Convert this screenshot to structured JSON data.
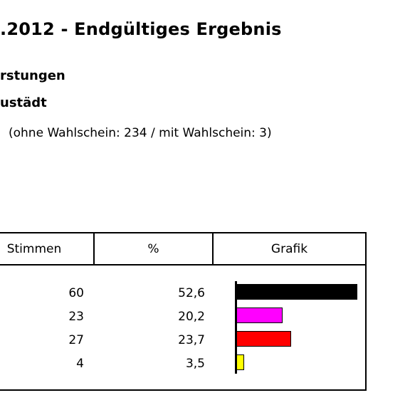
{
  "header": {
    "title": ".2012 - Endgültiges Ergebnis",
    "subtitle1": "rstungen",
    "subtitle2": "ustädt",
    "voters_line": "(ohne Wahlschein: 234 / mit Wahlschein: 3)"
  },
  "table": {
    "columns": [
      "Stimmen",
      "%",
      "Grafik"
    ],
    "rows": [
      {
        "votes": "60",
        "percent": "52,6",
        "color": "#000000",
        "share": 52.6
      },
      {
        "votes": "23",
        "percent": "20,2",
        "color": "#ff00ff",
        "share": 20.2
      },
      {
        "votes": "27",
        "percent": "23,7",
        "color": "#ff0000",
        "share": 23.7
      },
      {
        "votes": "4",
        "percent": "3,5",
        "color": "#ffff00",
        "share": 3.5
      }
    ]
  }
}
